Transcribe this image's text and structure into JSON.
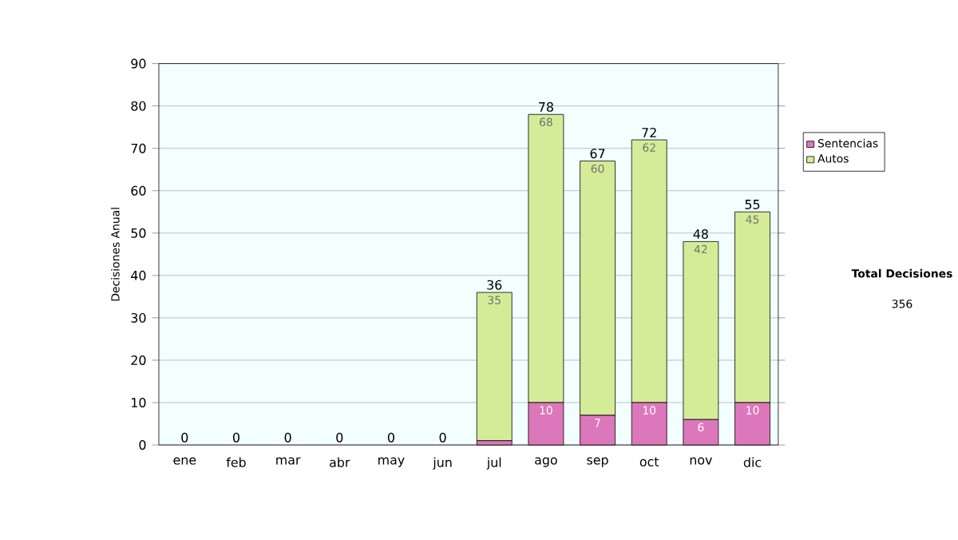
{
  "chart_data": {
    "type": "bar",
    "stacked": true,
    "ylabel": "Decisiones Anual",
    "categories": [
      "ene",
      "feb",
      "mar",
      "abr",
      "may",
      "jun",
      "jul",
      "ago",
      "sep",
      "oct",
      "nov",
      "dic"
    ],
    "series": [
      {
        "name": "Sentencias",
        "color": "#dd77bb",
        "values": [
          0,
          0,
          0,
          0,
          0,
          0,
          1,
          10,
          7,
          10,
          6,
          10
        ],
        "value_labels": [
          null,
          null,
          null,
          null,
          null,
          null,
          null,
          "10",
          "7",
          "10",
          "6",
          "10"
        ]
      },
      {
        "name": "Autos",
        "color": "#d4ec98",
        "values": [
          0,
          0,
          0,
          0,
          0,
          0,
          35,
          68,
          60,
          62,
          42,
          45
        ],
        "value_labels": [
          null,
          null,
          null,
          null,
          null,
          null,
          "35",
          "68",
          "60",
          "62",
          "42",
          "45"
        ]
      }
    ],
    "totals": [
      "0",
      "0",
      "0",
      "0",
      "0",
      "0",
      "36",
      "78",
      "67",
      "72",
      "48",
      "55"
    ],
    "ylim": [
      0,
      90
    ],
    "yticks": [
      0,
      10,
      20,
      30,
      40,
      50,
      60,
      70,
      80,
      90
    ],
    "grid": "y",
    "legend": "right",
    "annotations": [
      "Total Decisiones",
      "356"
    ]
  }
}
